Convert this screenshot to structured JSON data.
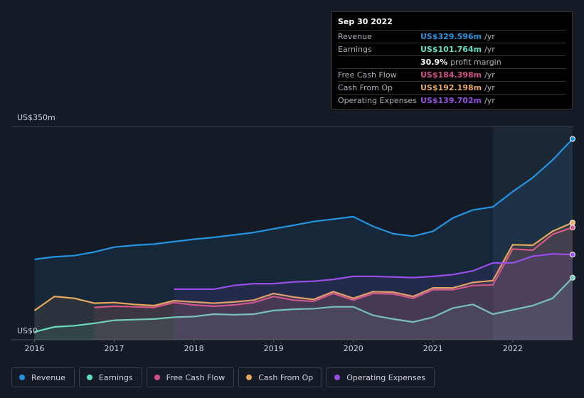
{
  "chart_data": {
    "type": "line",
    "x": [
      2016,
      2016.25,
      2016.5,
      2016.75,
      2017,
      2017.25,
      2017.5,
      2017.75,
      2018,
      2018.25,
      2018.5,
      2018.75,
      2019,
      2019.25,
      2019.5,
      2019.75,
      2020,
      2020.25,
      2020.5,
      2020.75,
      2021,
      2021.25,
      2021.5,
      2021.75,
      2022,
      2022.25,
      2022.5,
      2022.75
    ],
    "xlim": [
      2015.71,
      2022.76
    ],
    "xticks": [
      2016,
      2017,
      2018,
      2019,
      2020,
      2021,
      2022
    ],
    "ylim": [
      0,
      350
    ],
    "yticks": [
      {
        "value": 0,
        "label": "US$0"
      },
      {
        "value": 350,
        "label": "US$350m"
      }
    ],
    "series": [
      {
        "name": "Revenue",
        "color": "#2394df",
        "values": [
          132,
          136,
          138,
          144,
          152,
          155,
          157,
          161,
          165,
          168,
          172,
          176,
          182,
          188,
          194,
          198,
          202,
          186,
          174,
          170,
          178,
          200,
          213,
          218,
          243,
          266,
          295,
          329.596
        ]
      },
      {
        "name": "Earnings",
        "color": "#5ce1c6",
        "values": [
          13,
          21,
          23,
          27,
          32,
          33,
          34,
          37,
          38,
          42,
          41,
          42,
          48,
          50,
          51,
          54,
          54,
          40,
          34,
          29,
          37,
          52,
          58,
          42,
          49,
          56,
          68,
          101.764
        ]
      },
      {
        "name": "Free Cash Flow",
        "color": "#d4508a",
        "values": [
          null,
          null,
          null,
          53,
          55,
          54,
          53,
          61,
          57,
          55,
          57,
          61,
          71,
          65,
          63,
          76,
          65,
          76,
          75,
          68,
          82,
          82,
          89,
          90,
          149,
          147,
          173,
          184.398
        ]
      },
      {
        "name": "Cash From Op",
        "color": "#e8a95c",
        "values": [
          48,
          71,
          68,
          60,
          61,
          58,
          56,
          64,
          62,
          60,
          62,
          65,
          76,
          70,
          66,
          79,
          68,
          79,
          78,
          71,
          85,
          85,
          94,
          97,
          156,
          155,
          178,
          192.198
        ]
      },
      {
        "name": "Operating Expenses",
        "color": "#9b4de8",
        "values": [
          null,
          null,
          null,
          null,
          null,
          null,
          null,
          83,
          83,
          83,
          89,
          92,
          92,
          95,
          96,
          99,
          104,
          104,
          103,
          102,
          104,
          107,
          113,
          126,
          126,
          137,
          141,
          139.702
        ]
      }
    ],
    "tooltip": {
      "date": "Sep 30 2022",
      "rows": [
        {
          "label": "Revenue",
          "value": "US$329.596m",
          "suffix": "/yr",
          "color": "#2394df"
        },
        {
          "label": "Earnings",
          "value": "US$101.764m",
          "suffix": "/yr",
          "color": "#5ce1c6"
        },
        {
          "label": "",
          "value": "30.9%",
          "suffix": "profit margin",
          "color": "#ffffff"
        },
        {
          "label": "Free Cash Flow",
          "value": "US$184.398m",
          "suffix": "/yr",
          "color": "#d4508a"
        },
        {
          "label": "Cash From Op",
          "value": "US$192.198m",
          "suffix": "/yr",
          "color": "#e8a95c"
        },
        {
          "label": "Operating Expenses",
          "value": "US$139.702m",
          "suffix": "/yr",
          "color": "#9b4de8"
        }
      ]
    }
  }
}
